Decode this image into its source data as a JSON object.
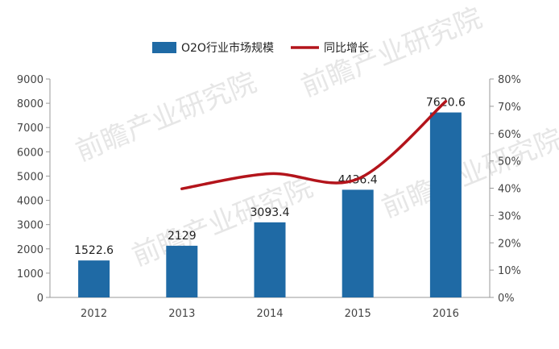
{
  "chart_data": {
    "type": "bar",
    "categories": [
      "2012",
      "2013",
      "2014",
      "2015",
      "2016"
    ],
    "series": [
      {
        "name": "O2O行业市场规模",
        "type": "bar",
        "axis": "left",
        "values": [
          1522.6,
          2129,
          3093.4,
          4436.4,
          7620.6
        ],
        "data_labels": [
          "1522.6",
          "2129",
          "3093.4",
          "4436.4",
          "7620.6"
        ],
        "color": "#1f6aa5"
      },
      {
        "name": "同比增长",
        "type": "line",
        "axis": "right",
        "values": [
          null,
          39.8,
          45.3,
          43.4,
          71.8
        ],
        "color": "#b3141b"
      }
    ],
    "y_left": {
      "min": 0,
      "max": 9000,
      "ticks": [
        "0",
        "1000",
        "2000",
        "3000",
        "4000",
        "5000",
        "6000",
        "7000",
        "8000",
        "9000"
      ]
    },
    "y_right": {
      "min": 0,
      "max": 80,
      "ticks": [
        "0%",
        "10%",
        "20%",
        "30%",
        "40%",
        "50%",
        "60%",
        "70%",
        "80%"
      ]
    },
    "legend_position": "top-center",
    "grid": false,
    "watermark": "前瞻产业研究院"
  }
}
